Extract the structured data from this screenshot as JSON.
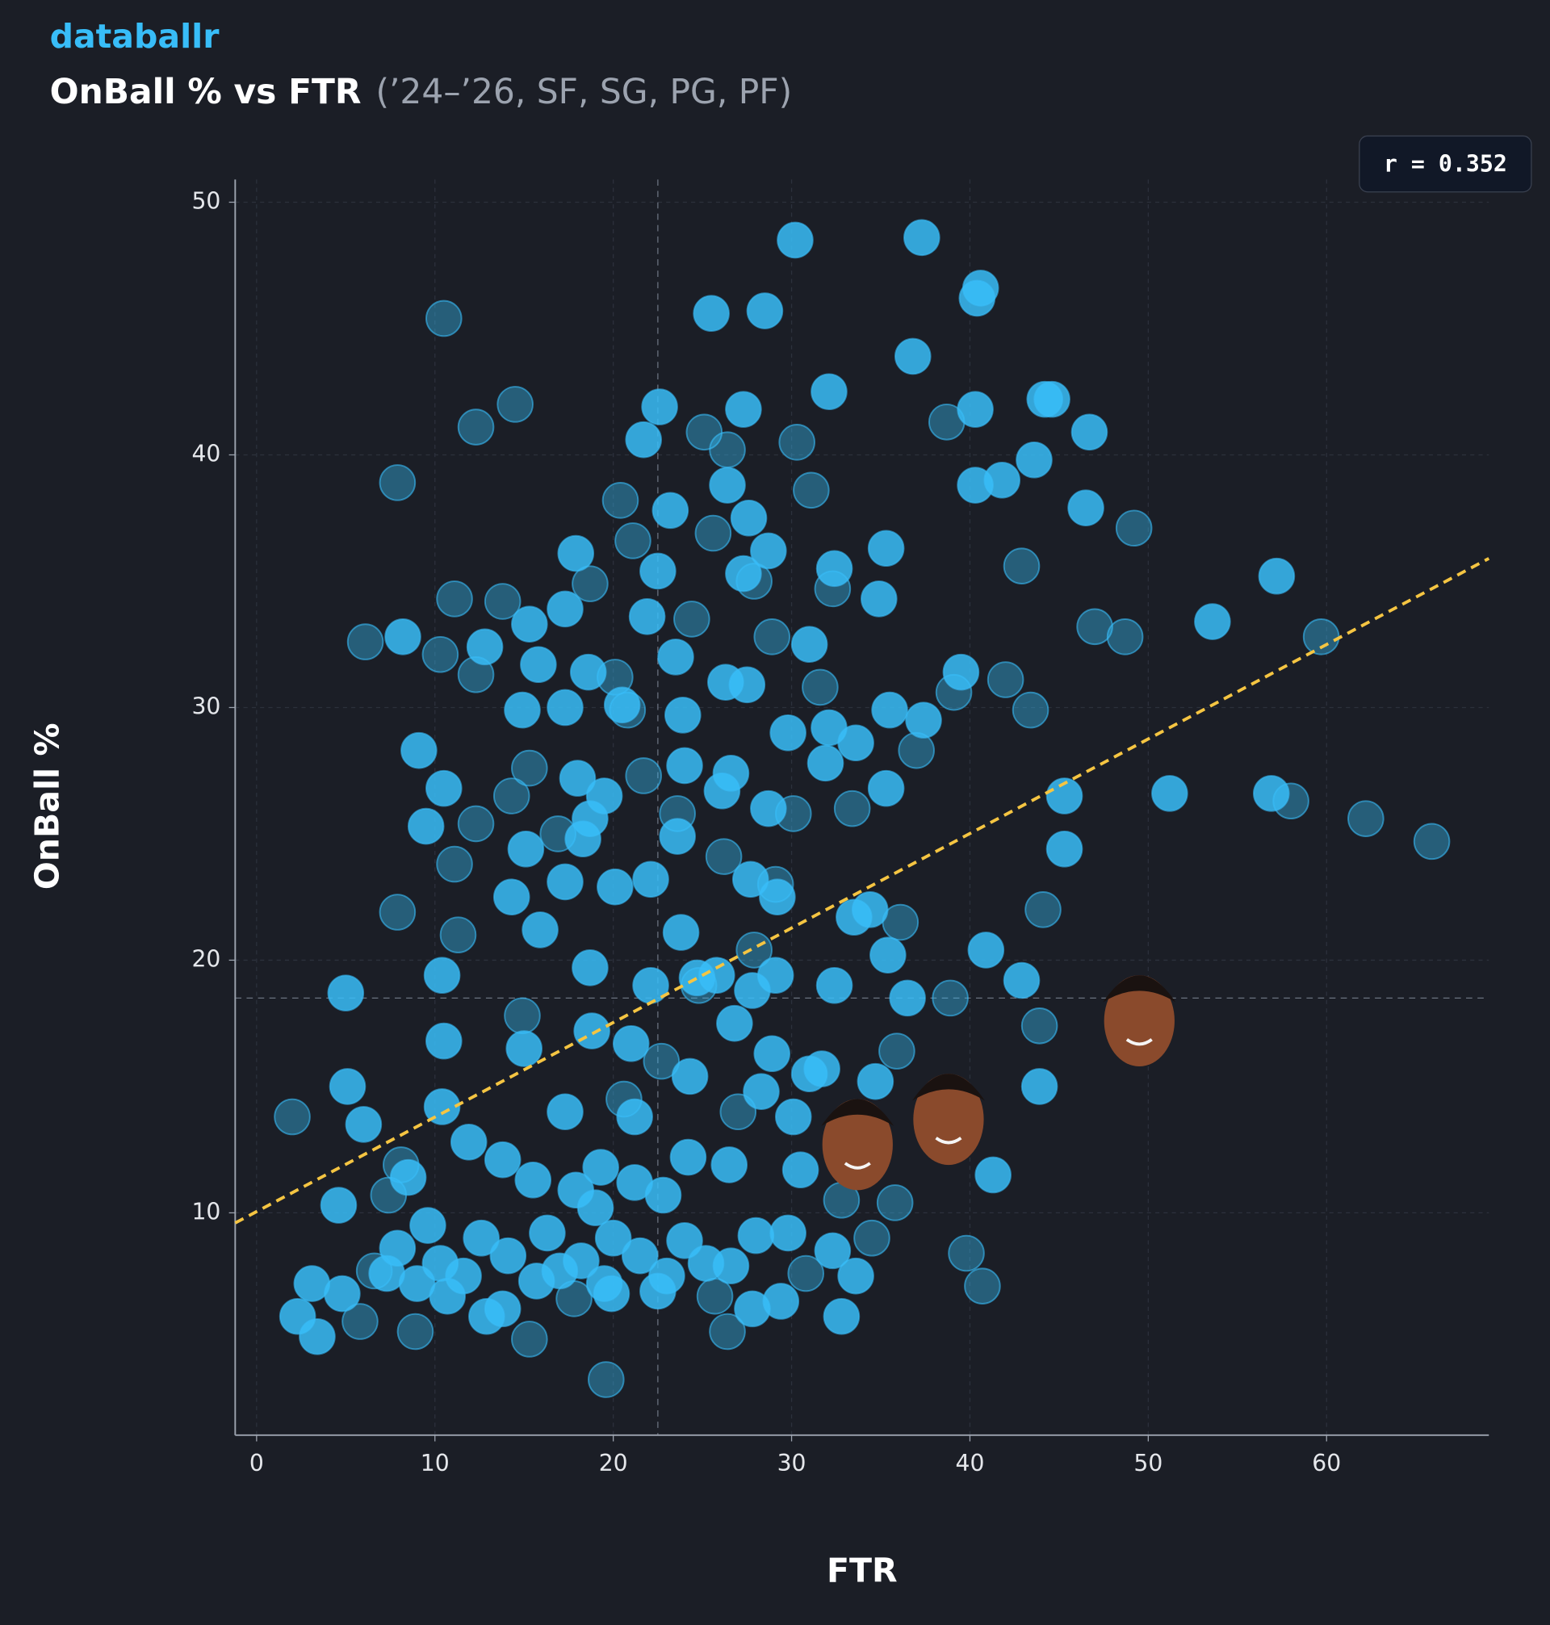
{
  "header": {
    "brand": "databallr"
  },
  "chart_data": {
    "type": "scatter",
    "title": "OnBall % vs FTR",
    "subtitle": "(’24–’26, SF, SG, PG, PF)",
    "x_label": "FTR",
    "y_label": "OnBall %",
    "annotation": "r = 0.352",
    "xlim": [
      -1.2,
      69.1
    ],
    "ylim": [
      1.2,
      50.9
    ],
    "xticks": [
      0,
      10,
      20,
      30,
      40,
      50,
      60
    ],
    "yticks": [
      10,
      20,
      30,
      40,
      50
    ],
    "grid": true,
    "x_median": 22.5,
    "y_median": 18.5,
    "trendline": {
      "color": "#f5c542",
      "x": [
        -1.2,
        69.1
      ],
      "y": [
        9.6,
        35.9
      ]
    },
    "series": [
      {
        "color": "#38bdf8",
        "opacity": 0.4,
        "x": [
          10.5,
          12.3,
          14.5,
          7.9,
          30.3,
          31.1,
          38.7,
          49.2,
          42.9,
          39.1,
          42.0,
          43.4,
          47.0,
          48.7,
          59.7,
          62.2,
          65.9,
          58.0,
          44.1,
          43.9,
          38.9,
          39.8,
          40.7,
          6.1,
          10.3,
          13.8,
          11.1,
          12.3,
          15.3,
          11.1,
          7.9,
          11.3,
          2.0,
          7.4,
          8.9,
          15.3,
          19.6,
          26.4,
          36.1,
          34.5,
          37.0,
          20.4,
          25.6,
          18.7,
          20.1,
          20.8,
          24.4,
          21.1,
          14.3,
          12.3,
          30.1,
          35.8,
          30.8,
          32.8,
          24.8,
          20.6,
          22.7,
          27.0,
          14.9,
          8.1,
          6.6,
          5.8,
          17.8,
          25.7,
          35.9,
          27.9,
          26.2,
          23.6,
          16.9,
          28.9,
          33.4,
          21.7,
          27.9,
          25.1,
          26.4,
          29.1,
          31.6,
          32.3
        ],
        "y": [
          45.4,
          41.1,
          42.0,
          38.9,
          40.5,
          38.6,
          41.3,
          37.1,
          35.6,
          30.6,
          31.1,
          29.9,
          33.2,
          32.8,
          32.8,
          25.6,
          24.7,
          26.3,
          22.0,
          17.4,
          18.5,
          8.4,
          7.1,
          32.6,
          32.1,
          34.2,
          34.3,
          31.3,
          27.6,
          23.8,
          21.9,
          21.0,
          13.8,
          10.7,
          5.3,
          5.0,
          3.4,
          5.3,
          21.5,
          9.0,
          28.3,
          38.2,
          36.9,
          34.9,
          31.2,
          29.9,
          33.5,
          36.6,
          26.5,
          25.4,
          25.8,
          10.4,
          7.6,
          10.5,
          19.0,
          14.5,
          16.0,
          14.0,
          17.8,
          11.9,
          7.7,
          5.7,
          6.6,
          6.7,
          16.4,
          20.4,
          24.1,
          25.8,
          25.0,
          32.8,
          26.0,
          27.3,
          35.0,
          40.9,
          40.2,
          23.0,
          30.8,
          34.7
        ]
      },
      {
        "color": "#38bdf8",
        "opacity": 0.85,
        "x": [
          30.2,
          37.3,
          25.5,
          28.5,
          40.6,
          40.4,
          36.8,
          32.1,
          44.2,
          44.6,
          40.3,
          46.7,
          22.6,
          27.3,
          21.7,
          26.4,
          40.3,
          41.8,
          43.6,
          46.5,
          23.2,
          27.6,
          28.7,
          17.9,
          35.3,
          57.2,
          22.5,
          27.3,
          32.4,
          34.9,
          17.3,
          21.9,
          53.6,
          15.3,
          8.2,
          12.8,
          39.5,
          31.0,
          15.8,
          23.5,
          26.3,
          27.5,
          18.6,
          20.5,
          23.9,
          17.3,
          14.9,
          29.8,
          35.5,
          37.4,
          32.1,
          33.6,
          24.0,
          26.6,
          31.9,
          9.1,
          18.0,
          19.5,
          10.5,
          26.1,
          28.7,
          35.3,
          51.2,
          56.9,
          45.3,
          9.5,
          18.7,
          23.6,
          15.1,
          45.3,
          22.1,
          27.7,
          29.2,
          33.5,
          17.3,
          34.4,
          15.9,
          40.9,
          35.4,
          42.9,
          36.5,
          32.4,
          10.4,
          5.0,
          18.7,
          29.1,
          25.8,
          22.1,
          24.7,
          18.8,
          26.8,
          15.0,
          21.0,
          10.5,
          31.0,
          34.7,
          43.9,
          5.1,
          10.4,
          17.3,
          6.0,
          24.3,
          28.3,
          21.2,
          30.5,
          41.3,
          26.5,
          19.3,
          13.8,
          15.5,
          11.9,
          8.5,
          17.9,
          22.8,
          4.6,
          9.6,
          12.6,
          16.3,
          20.0,
          24.0,
          28.0,
          29.8,
          7.9,
          10.3,
          14.1,
          18.2,
          21.5,
          25.2,
          9.0,
          11.6,
          15.7,
          19.5,
          23.0,
          26.6,
          32.3,
          3.1,
          4.8,
          7.3,
          10.7,
          13.8,
          19.9,
          22.5,
          27.8,
          29.4,
          2.3,
          3.4,
          32.8,
          12.9,
          33.6,
          17.0,
          21.2,
          19.0,
          24.2,
          30.1,
          33.2,
          31.7,
          28.9,
          27.8,
          23.8,
          14.3,
          20.1,
          18.3
        ],
        "y": [
          48.5,
          48.6,
          45.6,
          45.7,
          46.6,
          46.2,
          43.9,
          42.5,
          42.2,
          42.2,
          41.8,
          40.9,
          41.9,
          41.8,
          40.6,
          38.8,
          38.8,
          39.0,
          39.8,
          37.9,
          37.8,
          37.5,
          36.2,
          36.1,
          36.3,
          35.2,
          35.4,
          35.3,
          35.5,
          34.3,
          33.9,
          33.6,
          33.4,
          33.3,
          32.8,
          32.4,
          31.4,
          32.5,
          31.7,
          32.0,
          31.0,
          30.9,
          31.4,
          30.1,
          29.7,
          30.0,
          29.9,
          29.0,
          29.9,
          29.5,
          29.2,
          28.6,
          27.7,
          27.4,
          27.8,
          28.3,
          27.2,
          26.5,
          26.8,
          26.7,
          26.0,
          26.8,
          26.6,
          26.6,
          26.5,
          25.3,
          25.6,
          24.9,
          24.4,
          24.4,
          23.2,
          23.2,
          22.5,
          21.7,
          23.1,
          22.0,
          21.2,
          20.4,
          20.2,
          19.2,
          18.5,
          19.0,
          19.4,
          18.7,
          19.7,
          19.4,
          19.4,
          19.0,
          19.3,
          17.2,
          17.5,
          16.5,
          16.7,
          16.8,
          15.5,
          15.2,
          15.0,
          15.0,
          14.2,
          14.0,
          13.5,
          15.4,
          14.8,
          13.8,
          11.7,
          11.5,
          11.9,
          11.8,
          12.1,
          11.3,
          12.8,
          11.4,
          10.9,
          10.7,
          10.3,
          9.5,
          9.0,
          9.2,
          9.0,
          8.9,
          9.1,
          9.2,
          8.6,
          8.0,
          8.3,
          8.1,
          8.3,
          8.0,
          7.2,
          7.5,
          7.3,
          7.2,
          7.5,
          7.9,
          8.5,
          7.2,
          6.8,
          7.6,
          6.7,
          6.2,
          6.8,
          6.9,
          6.2,
          6.5,
          5.9,
          5.1,
          5.9,
          5.9,
          7.5,
          7.7,
          11.2,
          10.2,
          12.2,
          13.8,
          13.2,
          15.7,
          16.3,
          18.8,
          21.1,
          22.5,
          22.9,
          24.8
        ]
      },
      {
        "color": "#8a4a2c",
        "opacity": 1,
        "x": [
          33.7,
          38.8,
          49.5
        ],
        "y": [
          12.7,
          13.7,
          17.6
        ]
      }
    ]
  }
}
